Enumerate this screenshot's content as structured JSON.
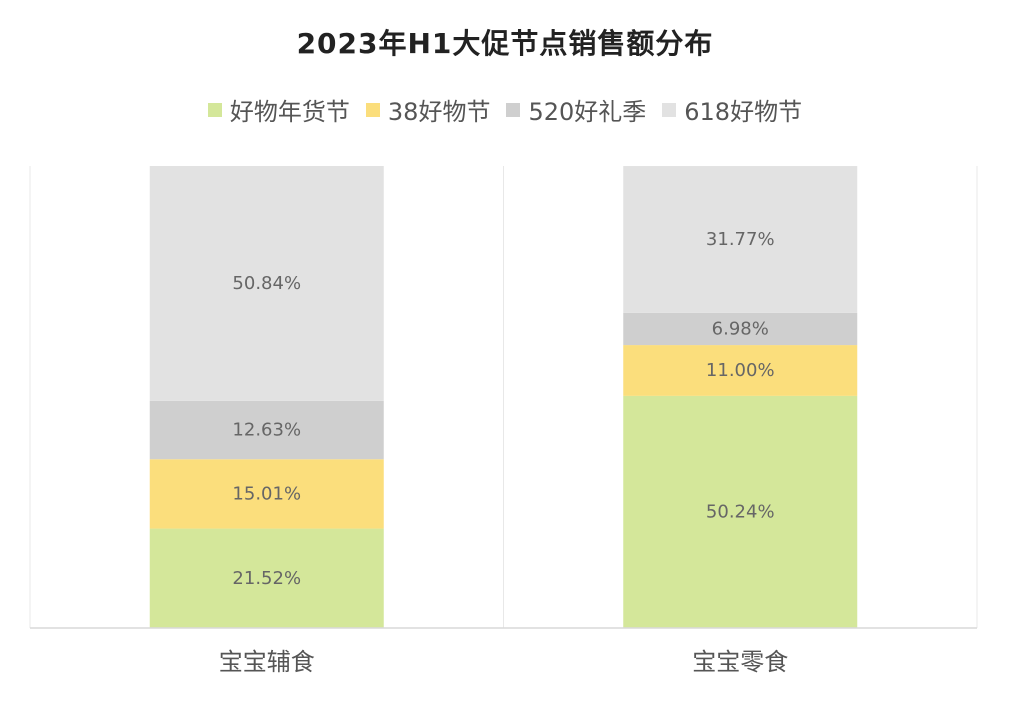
{
  "chart_data": {
    "type": "bar",
    "stacked": true,
    "title": "2023年H1大促节点销售额分布",
    "categories": [
      "宝宝辅食",
      "宝宝零食"
    ],
    "series": [
      {
        "name": "好物年货节",
        "color": "#d4e79a",
        "values": [
          21.52,
          50.24
        ],
        "labels": [
          "21.52%",
          "50.24%"
        ]
      },
      {
        "name": "38好物节",
        "color": "#fbde7c",
        "values": [
          15.01,
          11.0
        ],
        "labels": [
          "15.01%",
          "11.00%"
        ]
      },
      {
        "name": "520好礼季",
        "color": "#cfcfcf",
        "values": [
          12.63,
          6.98
        ],
        "labels": [
          "12.63%",
          "6.98%"
        ]
      },
      {
        "name": "618好物节",
        "color": "#e2e2e2",
        "values": [
          50.84,
          31.77
        ],
        "labels": [
          "50.84%",
          "31.77%"
        ]
      }
    ],
    "ylim": [
      0,
      100
    ],
    "legend": "top",
    "grid": false
  }
}
